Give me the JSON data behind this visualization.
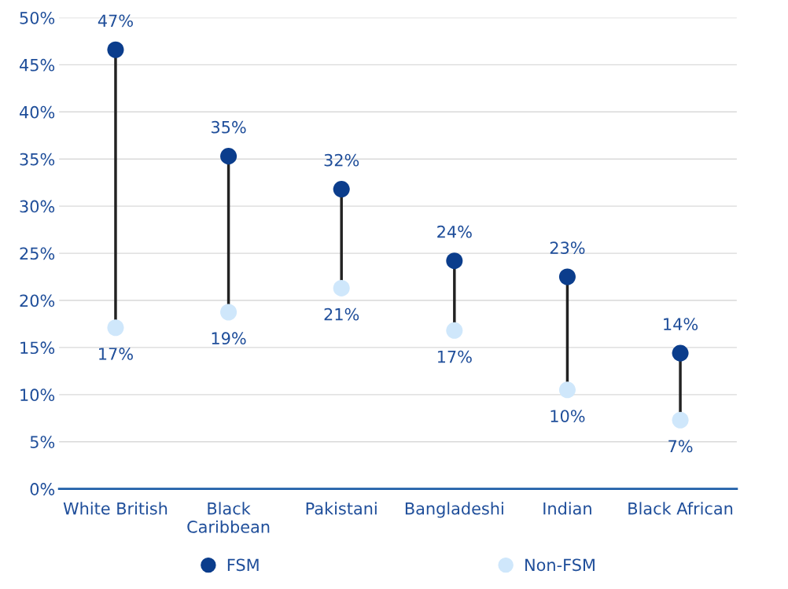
{
  "chart_data": {
    "type": "scatter",
    "categories": [
      "White British",
      "Black\nCaribbean",
      "Pakistani",
      "Bangladeshi",
      "Indian",
      "Black African"
    ],
    "series": [
      {
        "name": "FSM",
        "color": "#0b3d8c",
        "values": [
          46.6,
          35.3,
          31.8,
          24.2,
          22.5,
          14.4
        ],
        "value_labels": [
          "47%",
          "35%",
          "32%",
          "24%",
          "23%",
          "14%"
        ]
      },
      {
        "name": "Non-FSM",
        "color": "#cfe7fb",
        "values": [
          17.1,
          18.75,
          21.3,
          16.8,
          10.5,
          7.3
        ],
        "value_labels": [
          "17%",
          "19%",
          "21%",
          "17%",
          "10%",
          "7%"
        ]
      }
    ],
    "ylim": [
      0,
      50
    ],
    "yticks": [
      {
        "value": 0,
        "label": "0%"
      },
      {
        "value": 5,
        "label": "5%"
      },
      {
        "value": 10,
        "label": "10%"
      },
      {
        "value": 15,
        "label": "15%"
      },
      {
        "value": 20,
        "label": "20%"
      },
      {
        "value": 25,
        "label": "25%"
      },
      {
        "value": 30,
        "label": "30%"
      },
      {
        "value": 35,
        "label": "35%"
      },
      {
        "value": 40,
        "label": "40%"
      },
      {
        "value": 45,
        "label": "45%"
      },
      {
        "value": 50,
        "label": "50%"
      }
    ],
    "grid": "y",
    "legend": "bottom",
    "marker": "circle"
  }
}
